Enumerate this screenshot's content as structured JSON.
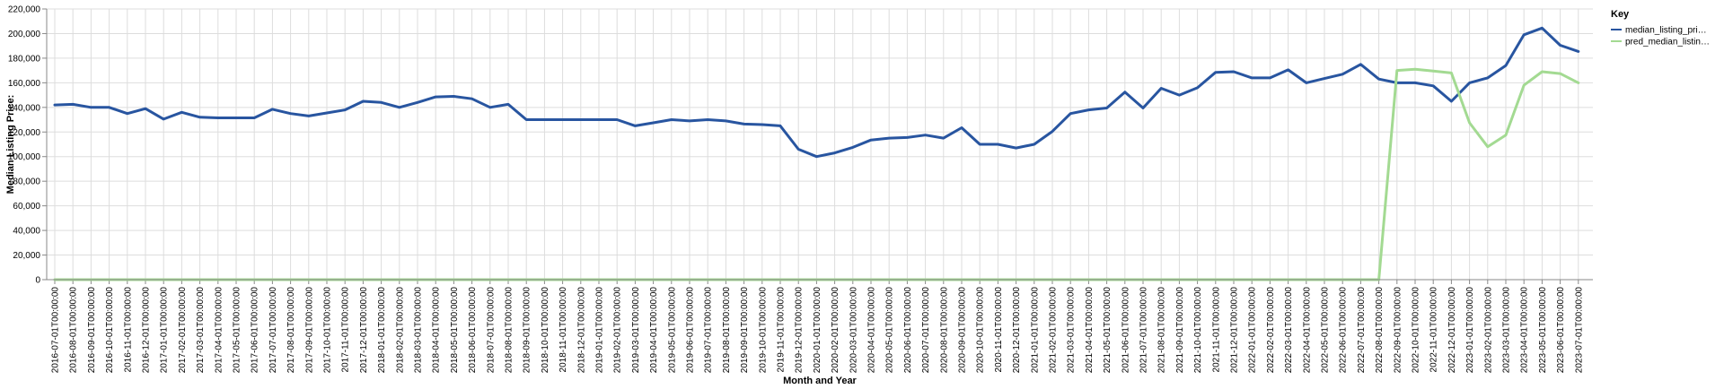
{
  "chart_data": {
    "type": "line",
    "xlabel": "Month and Year",
    "ylabel": "Median Listing Price:",
    "ylim": [
      0,
      220000
    ],
    "yticks": [
      "0",
      "20,000",
      "40,000",
      "60,000",
      "80,000",
      "100,000",
      "120,000",
      "140,000",
      "160,000",
      "180,000",
      "200,000",
      "220,000"
    ],
    "grid": true,
    "legend": {
      "title": "Key",
      "placement": "top-right"
    },
    "categories": [
      "2016-07-01T00:00:00",
      "2016-08-01T00:00:00",
      "2016-09-01T00:00:00",
      "2016-10-01T00:00:00",
      "2016-11-01T00:00:00",
      "2016-12-01T00:00:00",
      "2017-01-01T00:00:00",
      "2017-02-01T00:00:00",
      "2017-03-01T00:00:00",
      "2017-04-01T00:00:00",
      "2017-05-01T00:00:00",
      "2017-06-01T00:00:00",
      "2017-07-01T00:00:00",
      "2017-08-01T00:00:00",
      "2017-09-01T00:00:00",
      "2017-10-01T00:00:00",
      "2017-11-01T00:00:00",
      "2017-12-01T00:00:00",
      "2018-01-01T00:00:00",
      "2018-02-01T00:00:00",
      "2018-03-01T00:00:00",
      "2018-04-01T00:00:00",
      "2018-05-01T00:00:00",
      "2018-06-01T00:00:00",
      "2018-07-01T00:00:00",
      "2018-08-01T00:00:00",
      "2018-09-01T00:00:00",
      "2018-10-01T00:00:00",
      "2018-11-01T00:00:00",
      "2018-12-01T00:00:00",
      "2019-01-01T00:00:00",
      "2019-02-01T00:00:00",
      "2019-03-01T00:00:00",
      "2019-04-01T00:00:00",
      "2019-05-01T00:00:00",
      "2019-06-01T00:00:00",
      "2019-07-01T00:00:00",
      "2019-08-01T00:00:00",
      "2019-09-01T00:00:00",
      "2019-10-01T00:00:00",
      "2019-11-01T00:00:00",
      "2019-12-01T00:00:00",
      "2020-01-01T00:00:00",
      "2020-02-01T00:00:00",
      "2020-03-01T00:00:00",
      "2020-04-01T00:00:00",
      "2020-05-01T00:00:00",
      "2020-06-01T00:00:00",
      "2020-07-01T00:00:00",
      "2020-08-01T00:00:00",
      "2020-09-01T00:00:00",
      "2020-10-01T00:00:00",
      "2020-11-01T00:00:00",
      "2020-12-01T00:00:00",
      "2021-01-01T00:00:00",
      "2021-02-01T00:00:00",
      "2021-03-01T00:00:00",
      "2021-04-01T00:00:00",
      "2021-05-01T00:00:00",
      "2021-06-01T00:00:00",
      "2021-07-01T00:00:00",
      "2021-08-01T00:00:00",
      "2021-09-01T00:00:00",
      "2021-10-01T00:00:00",
      "2021-11-01T00:00:00",
      "2021-12-01T00:00:00",
      "2022-01-01T00:00:00",
      "2022-02-01T00:00:00",
      "2022-03-01T00:00:00",
      "2022-04-01T00:00:00",
      "2022-05-01T00:00:00",
      "2022-06-01T00:00:00",
      "2022-07-01T00:00:00",
      "2022-08-01T00:00:00",
      "2022-09-01T00:00:00",
      "2022-10-01T00:00:00",
      "2022-11-01T00:00:00",
      "2022-12-01T00:00:00",
      "2023-01-01T00:00:00",
      "2023-02-01T00:00:00",
      "2023-03-01T00:00:00",
      "2023-04-01T00:00:00",
      "2023-05-01T00:00:00",
      "2023-06-01T00:00:00",
      "2023-07-01T00:00:00"
    ],
    "series": [
      {
        "name": "median_listing_pri…",
        "color": "#2855a0",
        "values": [
          142000,
          142500,
          140000,
          140000,
          135000,
          139000,
          130500,
          136000,
          132000,
          131500,
          131500,
          131500,
          138500,
          135000,
          133000,
          135500,
          138000,
          145000,
          144000,
          140000,
          144000,
          148500,
          149000,
          147000,
          140000,
          142500,
          130000,
          130000,
          130000,
          130000,
          130000,
          130000,
          125000,
          127500,
          130000,
          129000,
          130000,
          129000,
          126500,
          126000,
          125000,
          106000,
          100000,
          103000,
          107500,
          113500,
          115000,
          115500,
          117500,
          115000,
          123500,
          110000,
          110000,
          107000,
          110000,
          120500,
          135000,
          138000,
          139500,
          152500,
          139500,
          155500,
          150000,
          156000,
          168500,
          169000,
          164000,
          164000,
          170500,
          160000,
          163500,
          167000,
          175000,
          163000,
          160000,
          160000,
          157500,
          145000,
          160000,
          164000,
          174000,
          199000,
          204500,
          190500,
          185500
        ]
      },
      {
        "name": "pred_median_listin…",
        "color": "#a3da92",
        "values": [
          0,
          0,
          0,
          0,
          0,
          0,
          0,
          0,
          0,
          0,
          0,
          0,
          0,
          0,
          0,
          0,
          0,
          0,
          0,
          0,
          0,
          0,
          0,
          0,
          0,
          0,
          0,
          0,
          0,
          0,
          0,
          0,
          0,
          0,
          0,
          0,
          0,
          0,
          0,
          0,
          0,
          0,
          0,
          0,
          0,
          0,
          0,
          0,
          0,
          0,
          0,
          0,
          0,
          0,
          0,
          0,
          0,
          0,
          0,
          0,
          0,
          0,
          0,
          0,
          0,
          0,
          0,
          0,
          0,
          0,
          0,
          0,
          0,
          0,
          170000,
          171000,
          169500,
          168000,
          127500,
          108000,
          117500,
          158000,
          169000,
          167500,
          160000
        ]
      }
    ]
  }
}
